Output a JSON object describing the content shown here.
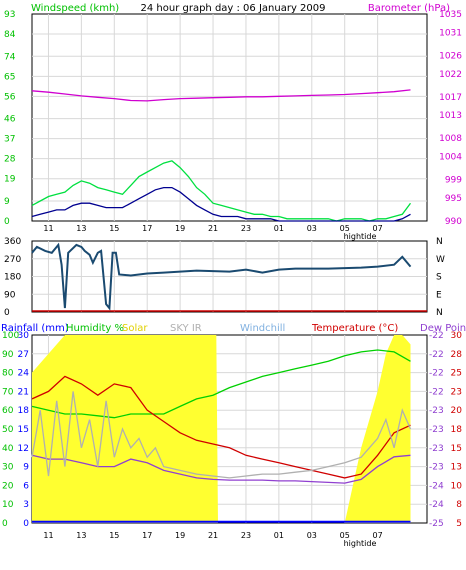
{
  "chart_data": [
    {
      "type": "line",
      "title": "24 hour graph day : 06 January 2009",
      "left_axis_label": "Windspeed (kmh)",
      "right_axis_label": "Barometer (hPa)",
      "left_ticks": [
        0,
        9,
        19,
        28,
        37,
        46,
        56,
        65,
        74,
        84,
        93
      ],
      "right_ticks": [
        990,
        995,
        999,
        1004,
        1008,
        1013,
        1017,
        1022,
        1026,
        1031,
        1035
      ],
      "ylim_left": [
        0,
        93
      ],
      "ylim_right": [
        990,
        1035
      ],
      "x_ticks": [
        "11",
        "13",
        "15",
        "17",
        "19",
        "21",
        "23",
        "01",
        "03",
        "05",
        "07"
      ],
      "x_extra_label": "hightide",
      "x_hours_from_start": [
        1,
        3,
        5,
        7,
        9,
        11,
        13,
        15,
        17,
        19,
        21
      ],
      "series": [
        {
          "name": "Windspeed gust",
          "color": "#00e040",
          "axis": "left",
          "x": [
            0,
            0.5,
            1,
            1.5,
            2,
            2.5,
            3,
            3.5,
            4,
            4.5,
            5,
            5.5,
            6,
            6.5,
            7,
            7.5,
            8,
            8.5,
            9,
            9.5,
            10,
            10.5,
            11,
            11.5,
            12,
            12.5,
            13,
            13.5,
            14,
            14.5,
            15,
            15.5,
            16,
            16.5,
            17,
            17.5,
            18,
            18.5,
            19,
            19.5,
            20,
            20.5,
            21,
            21.5,
            22,
            22.5,
            23
          ],
          "y": [
            7,
            9,
            11,
            12,
            13,
            16,
            18,
            17,
            15,
            14,
            13,
            12,
            16,
            20,
            22,
            24,
            26,
            27,
            24,
            20,
            15,
            12,
            8,
            7,
            6,
            5,
            4,
            3,
            3,
            2,
            2,
            1,
            1,
            1,
            1,
            1,
            1,
            0,
            1,
            1,
            1,
            0,
            1,
            1,
            2,
            3,
            8
          ]
        },
        {
          "name": "Windspeed average",
          "color": "#000090",
          "axis": "left",
          "x": [
            0,
            0.5,
            1,
            1.5,
            2,
            2.5,
            3,
            3.5,
            4,
            4.5,
            5,
            5.5,
            6,
            6.5,
            7,
            7.5,
            8,
            8.5,
            9,
            9.5,
            10,
            10.5,
            11,
            11.5,
            12,
            12.5,
            13,
            13.5,
            14,
            14.5,
            15,
            15.5,
            16,
            16.5,
            17,
            17.5,
            18,
            18.5,
            19,
            19.5,
            20,
            20.5,
            21,
            21.5,
            22,
            22.5,
            23
          ],
          "y": [
            2,
            3,
            4,
            5,
            5,
            7,
            8,
            8,
            7,
            6,
            6,
            6,
            8,
            10,
            12,
            14,
            15,
            15,
            13,
            10,
            7,
            5,
            3,
            2,
            2,
            2,
            1,
            1,
            1,
            1,
            0,
            0,
            0,
            0,
            0,
            0,
            0,
            0,
            0,
            0,
            0,
            0,
            0,
            0,
            0,
            1,
            3
          ]
        },
        {
          "name": "Barometer",
          "color": "#d000d0",
          "axis": "right",
          "x": [
            0,
            1,
            2,
            3,
            4,
            5,
            6,
            7,
            8,
            9,
            10,
            11,
            12,
            13,
            14,
            15,
            16,
            17,
            18,
            19,
            20,
            21,
            22,
            23
          ],
          "y": [
            1018.3,
            1018.0,
            1017.6,
            1017.2,
            1016.9,
            1016.6,
            1016.2,
            1016.1,
            1016.4,
            1016.6,
            1016.7,
            1016.8,
            1016.9,
            1017.0,
            1017.0,
            1017.1,
            1017.2,
            1017.3,
            1017.4,
            1017.5,
            1017.7,
            1017.9,
            1018.1,
            1018.5
          ]
        }
      ]
    },
    {
      "type": "line",
      "left_ticks": [
        0,
        90,
        180,
        270,
        360
      ],
      "right_ticks": [
        "N",
        "E",
        "S",
        "W",
        "N"
      ],
      "ylim": [
        0,
        360
      ],
      "series": [
        {
          "name": "Wind direction",
          "color": "#1a4a70",
          "x": [
            0,
            0.3,
            0.8,
            1.2,
            1.6,
            1.8,
            2.0,
            2.2,
            2.7,
            3.0,
            3.2,
            3.5,
            3.7,
            4.0,
            4.2,
            4.5,
            4.7,
            4.9,
            5.1,
            5.3,
            6,
            7,
            8,
            9,
            10,
            12,
            13,
            14,
            15,
            16,
            18,
            20,
            21,
            22,
            22.5,
            23
          ],
          "y": [
            300,
            330,
            310,
            300,
            340,
            240,
            20,
            300,
            340,
            330,
            310,
            290,
            250,
            300,
            310,
            40,
            20,
            300,
            300,
            190,
            185,
            195,
            200,
            205,
            210,
            205,
            215,
            200,
            215,
            220,
            220,
            225,
            230,
            240,
            280,
            230
          ]
        }
      ]
    },
    {
      "type": "line",
      "legend": [
        "Rainfall (mm)",
        "Humidity %",
        "Solar",
        "SKY IR",
        "Windchill",
        "Temperature (°C)",
        "Dew Point"
      ],
      "left_ticks_rain": [
        "0",
        "3",
        "6",
        "9",
        "12",
        "15",
        "18",
        "21",
        "24",
        "27",
        "30"
      ],
      "left_ticks_humidity": [
        "0",
        "10",
        "20",
        "30",
        "40",
        "50",
        "60",
        "70",
        "80",
        "90",
        "100"
      ],
      "right_ticks_temp": [
        "-25",
        "-24",
        "-24",
        "-23",
        "-23",
        "-23",
        "-23",
        "-22",
        "-22",
        "-22",
        "-22"
      ],
      "right_ticks_temp_b": [
        "5",
        "8",
        "10",
        "13",
        "15",
        "18",
        "20",
        "23",
        "25",
        "28",
        "30"
      ],
      "x_ticks": [
        "11",
        "13",
        "15",
        "17",
        "19",
        "21",
        "23",
        "01",
        "03",
        "05",
        "07"
      ],
      "x_extra_label": "hightide",
      "series": [
        {
          "name": "Solar",
          "color": "#ffff30",
          "x": [
            0,
            0.5,
            1,
            1.5,
            2,
            3,
            4,
            5,
            6,
            7,
            8,
            9,
            10,
            11,
            11.2,
            11.3,
            12,
            14,
            16,
            18,
            19,
            19.5,
            20,
            21,
            21.5,
            22,
            22.5,
            23
          ],
          "y": [
            80,
            85,
            90,
            95,
            100,
            100,
            100,
            100,
            100,
            100,
            100,
            100,
            100,
            100,
            100,
            0,
            0,
            0,
            0,
            0,
            0,
            20,
            40,
            70,
            90,
            100,
            100,
            95
          ]
        },
        {
          "name": "Humidity",
          "color": "#00d000",
          "x": [
            0,
            1,
            2,
            3,
            4,
            5,
            6,
            7,
            8,
            9,
            10,
            11,
            12,
            13,
            14,
            15,
            16,
            17,
            18,
            19,
            20,
            21,
            22,
            23
          ],
          "y": [
            62,
            60,
            58,
            58,
            57,
            56,
            58,
            58,
            58,
            62,
            66,
            68,
            72,
            75,
            78,
            80,
            82,
            84,
            86,
            89,
            91,
            92,
            91,
            86
          ]
        },
        {
          "name": "Temperature",
          "color": "#d00000",
          "x": [
            0,
            1,
            2,
            3,
            4,
            5,
            6,
            7,
            8,
            9,
            10,
            11,
            12,
            13,
            14,
            15,
            16,
            17,
            18,
            19,
            20,
            21,
            22,
            23
          ],
          "y": [
            21.5,
            22.5,
            24.5,
            23.5,
            22,
            23.5,
            23,
            20,
            18.5,
            17,
            16,
            15.5,
            15,
            14,
            13.5,
            13,
            12.5,
            12,
            11.5,
            11,
            11.5,
            14,
            17,
            18
          ]
        },
        {
          "name": "Dew Point",
          "color": "#9040d0",
          "x": [
            0,
            1,
            2,
            3,
            4,
            5,
            6,
            7,
            8,
            9,
            10,
            11,
            12,
            13,
            14,
            15,
            16,
            17,
            18,
            19,
            20,
            21,
            22,
            23
          ],
          "y": [
            14,
            13.5,
            13.5,
            13,
            12.5,
            12.5,
            13.5,
            13,
            12,
            11.5,
            11,
            10.8,
            10.7,
            10.7,
            10.7,
            10.6,
            10.6,
            10.5,
            10.4,
            10.3,
            10.8,
            12.5,
            13.8,
            14
          ]
        },
        {
          "name": "SKY IR",
          "color": "#b0b0b0",
          "x": [
            0,
            0.5,
            1,
            1.5,
            2,
            2.5,
            3,
            3.5,
            4,
            4.5,
            5,
            5.5,
            6,
            6.5,
            7,
            7.5,
            8,
            9,
            10,
            11,
            12,
            13,
            14,
            15,
            16,
            17,
            18,
            19,
            20,
            21,
            21.5,
            22,
            22.5,
            23
          ],
          "y": [
            35,
            60,
            25,
            65,
            30,
            70,
            40,
            55,
            30,
            65,
            35,
            50,
            40,
            45,
            35,
            40,
            30,
            28,
            26,
            25,
            24,
            25,
            26,
            26,
            27,
            28,
            30,
            32,
            35,
            45,
            55,
            40,
            60,
            50
          ]
        },
        {
          "name": "Rainfall",
          "color": "#0000ff",
          "x": [
            0,
            23
          ],
          "y": [
            0.2,
            0.2
          ]
        }
      ]
    }
  ]
}
